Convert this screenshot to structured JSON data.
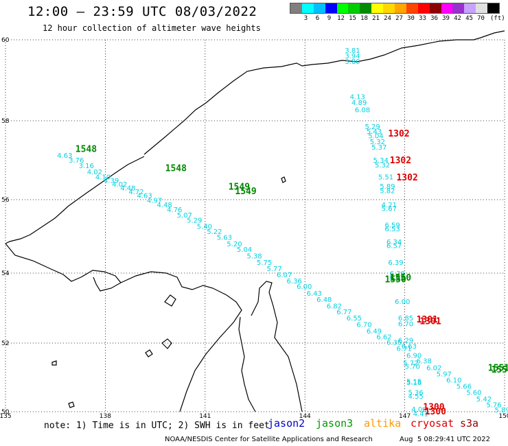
{
  "header": {
    "title": "12:00 – 23:59 UTC 08/03/2022",
    "subtitle": "12 hour collection of altimeter wave heights"
  },
  "colorbar": {
    "colors": [
      "#7f7f7f",
      "#00ffff",
      "#00bfff",
      "#0000ff",
      "#00ff00",
      "#00cd00",
      "#008b00",
      "#ffff00",
      "#ffd700",
      "#ffa500",
      "#ff4500",
      "#ff0000",
      "#8b0000",
      "#ff00ff",
      "#9932cc",
      "#c8a2ff",
      "#e0e0e0",
      "#000000"
    ],
    "labels": [
      "3",
      "6",
      "9",
      "12",
      "15",
      "18",
      "21",
      "24",
      "27",
      "30",
      "33",
      "36",
      "39",
      "42",
      "45",
      "70"
    ],
    "unit": "(ft)"
  },
  "axes": {
    "lon_ticks": [
      "135",
      "138",
      "141",
      "144",
      "147",
      "150"
    ],
    "lat_ticks": [
      "60",
      "58",
      "56",
      "54",
      "52",
      "50"
    ]
  },
  "footer": {
    "note": "note: 1) Time is in UTC; 2) SWH is in feet",
    "satellites": [
      {
        "name": "jason2",
        "color": "#0000cc"
      },
      {
        "name": "jason3",
        "color": "#009900"
      },
      {
        "name": "altika",
        "color": "#ff9900"
      },
      {
        "name": "cryosat",
        "color": "#dd0000"
      },
      {
        "name": "s3a",
        "color": "#990000"
      }
    ],
    "credit": "NOAA/NESDIS Center for Satellite Applications and Research",
    "generated": "Aug  5 08:29:41 UTC 2022"
  },
  "wave_heights": [
    {
      "lon": 145.2,
      "lat": 59.65,
      "value": "3.81"
    },
    {
      "lon": 145.2,
      "lat": 59.5,
      "value": "3.94"
    },
    {
      "lon": 145.2,
      "lat": 59.35,
      "value": "3.80"
    },
    {
      "lon": 145.35,
      "lat": 58.4,
      "value": "4.13"
    },
    {
      "lon": 145.4,
      "lat": 58.25,
      "value": "4.89"
    },
    {
      "lon": 145.5,
      "lat": 58.05,
      "value": "6.08"
    },
    {
      "lon": 145.8,
      "lat": 57.6,
      "value": "5.29"
    },
    {
      "lon": 145.85,
      "lat": 57.47,
      "value": "5.43"
    },
    {
      "lon": 145.9,
      "lat": 57.35,
      "value": "5.04"
    },
    {
      "lon": 145.95,
      "lat": 57.2,
      "value": "5.32"
    },
    {
      "lon": 146.0,
      "lat": 57.05,
      "value": "5.37"
    },
    {
      "lon": 146.05,
      "lat": 56.7,
      "value": "5.34"
    },
    {
      "lon": 146.1,
      "lat": 56.57,
      "value": "5.32"
    },
    {
      "lon": 146.2,
      "lat": 56.25,
      "value": "5.51"
    },
    {
      "lon": 146.25,
      "lat": 56.0,
      "value": "5.89"
    },
    {
      "lon": 146.25,
      "lat": 55.88,
      "value": "5.82"
    },
    {
      "lon": 146.3,
      "lat": 55.5,
      "value": "4.21"
    },
    {
      "lon": 146.3,
      "lat": 55.4,
      "value": "5.67"
    },
    {
      "lon": 146.4,
      "lat": 54.95,
      "value": "6.59"
    },
    {
      "lon": 146.4,
      "lat": 54.85,
      "value": "6.53"
    },
    {
      "lon": 146.45,
      "lat": 54.5,
      "value": "6.34"
    },
    {
      "lon": 146.45,
      "lat": 54.4,
      "value": "6.57"
    },
    {
      "lon": 146.5,
      "lat": 53.95,
      "value": "6.39"
    },
    {
      "lon": 146.55,
      "lat": 53.65,
      "value": "6.28"
    },
    {
      "lon": 146.55,
      "lat": 53.55,
      "value": "6.29"
    },
    {
      "lon": 146.7,
      "lat": 52.9,
      "value": "6.00"
    },
    {
      "lon": 146.8,
      "lat": 52.45,
      "value": "6.85"
    },
    {
      "lon": 146.8,
      "lat": 52.3,
      "value": "6.70"
    },
    {
      "lon": 146.8,
      "lat": 51.85,
      "value": "6.29"
    },
    {
      "lon": 146.9,
      "lat": 51.7,
      "value": "6.63"
    },
    {
      "lon": 146.95,
      "lat": 51.25,
      "value": "5.72"
    },
    {
      "lon": 147.0,
      "lat": 51.15,
      "value": "5.70"
    },
    {
      "lon": 147.05,
      "lat": 50.75,
      "value": "5.15"
    },
    {
      "lon": 147.05,
      "lat": 50.72,
      "value": "5.16"
    },
    {
      "lon": 147.1,
      "lat": 50.45,
      "value": "5.36"
    },
    {
      "lon": 147.1,
      "lat": 50.35,
      "value": "4.55"
    },
    {
      "lon": 147.2,
      "lat": 50.0,
      "value": "4.00"
    },
    {
      "lon": 147.25,
      "lat": 49.88,
      "value": "4.41"
    },
    {
      "lon": 136.55,
      "lat": 56.83,
      "value": "4.63"
    },
    {
      "lon": 136.9,
      "lat": 56.7,
      "value": "3.76"
    },
    {
      "lon": 137.2,
      "lat": 56.55,
      "value": "3.16"
    },
    {
      "lon": 137.45,
      "lat": 56.38,
      "value": "4.02"
    },
    {
      "lon": 137.7,
      "lat": 56.25,
      "value": "4.10"
    },
    {
      "lon": 137.95,
      "lat": 56.15,
      "value": "4.39"
    },
    {
      "lon": 138.2,
      "lat": 56.05,
      "value": "4.02"
    },
    {
      "lon": 138.45,
      "lat": 55.95,
      "value": "4.48"
    },
    {
      "lon": 138.7,
      "lat": 55.85,
      "value": "4.72"
    },
    {
      "lon": 138.95,
      "lat": 55.75,
      "value": "4.63"
    },
    {
      "lon": 139.25,
      "lat": 55.62,
      "value": "4.97"
    },
    {
      "lon": 139.55,
      "lat": 55.5,
      "value": "4.48"
    },
    {
      "lon": 139.85,
      "lat": 55.37,
      "value": "4.76"
    },
    {
      "lon": 140.15,
      "lat": 55.22,
      "value": "5.07"
    },
    {
      "lon": 140.45,
      "lat": 55.08,
      "value": "5.29"
    },
    {
      "lon": 140.75,
      "lat": 54.92,
      "value": "5.40"
    },
    {
      "lon": 141.05,
      "lat": 54.78,
      "value": "5.22"
    },
    {
      "lon": 141.35,
      "lat": 54.62,
      "value": "5.63"
    },
    {
      "lon": 141.65,
      "lat": 54.45,
      "value": "5.20"
    },
    {
      "lon": 141.95,
      "lat": 54.3,
      "value": "5.04"
    },
    {
      "lon": 142.25,
      "lat": 54.12,
      "value": "5.38"
    },
    {
      "lon": 142.55,
      "lat": 53.95,
      "value": "5.75"
    },
    {
      "lon": 142.85,
      "lat": 53.78,
      "value": "5.77"
    },
    {
      "lon": 143.15,
      "lat": 53.62,
      "value": "6.07"
    },
    {
      "lon": 143.45,
      "lat": 53.45,
      "value": "6.36"
    },
    {
      "lon": 143.75,
      "lat": 53.3,
      "value": "6.00"
    },
    {
      "lon": 144.05,
      "lat": 53.12,
      "value": "6.43"
    },
    {
      "lon": 144.35,
      "lat": 52.95,
      "value": "6.48"
    },
    {
      "lon": 144.65,
      "lat": 52.78,
      "value": "6.82"
    },
    {
      "lon": 144.95,
      "lat": 52.62,
      "value": "6.77"
    },
    {
      "lon": 145.25,
      "lat": 52.45,
      "value": "6.55"
    },
    {
      "lon": 145.55,
      "lat": 52.28,
      "value": "6.70"
    },
    {
      "lon": 145.85,
      "lat": 52.1,
      "value": "6.49"
    },
    {
      "lon": 146.15,
      "lat": 51.95,
      "value": "6.62"
    },
    {
      "lon": 146.45,
      "lat": 51.8,
      "value": "6.35"
    },
    {
      "lon": 146.75,
      "lat": 51.63,
      "value": "6.71"
    },
    {
      "lon": 147.05,
      "lat": 51.45,
      "value": "6.90"
    },
    {
      "lon": 147.35,
      "lat": 51.3,
      "value": "6.38"
    },
    {
      "lon": 147.65,
      "lat": 51.12,
      "value": "6.02"
    },
    {
      "lon": 147.95,
      "lat": 50.95,
      "value": "5.97"
    },
    {
      "lon": 148.25,
      "lat": 50.78,
      "value": "6.10"
    },
    {
      "lon": 148.55,
      "lat": 50.62,
      "value": "5.66"
    },
    {
      "lon": 148.85,
      "lat": 50.45,
      "value": "5.60"
    },
    {
      "lon": 149.15,
      "lat": 50.28,
      "value": "5.42"
    },
    {
      "lon": 149.45,
      "lat": 50.12,
      "value": "5.76"
    },
    {
      "lon": 149.7,
      "lat": 49.98,
      "value": "5.89"
    }
  ],
  "pass_times": [
    {
      "lon": 137.1,
      "lat": 56.98,
      "value": "1548",
      "color": "#008800"
    },
    {
      "lon": 139.8,
      "lat": 56.47,
      "value": "1548",
      "color": "#008800"
    },
    {
      "lon": 141.7,
      "lat": 55.97,
      "value": "1549",
      "color": "#008800"
    },
    {
      "lon": 141.9,
      "lat": 55.85,
      "value": "1549",
      "color": "#008800"
    },
    {
      "lon": 146.5,
      "lat": 57.4,
      "value": "1302",
      "color": "#dd0000"
    },
    {
      "lon": 146.55,
      "lat": 56.68,
      "value": "1302",
      "color": "#dd0000"
    },
    {
      "lon": 146.75,
      "lat": 56.22,
      "value": "1302",
      "color": "#dd0000"
    },
    {
      "lon": 146.4,
      "lat": 53.48,
      "value": "1550",
      "color": "#008800"
    },
    {
      "lon": 146.55,
      "lat": 53.52,
      "value": "1550",
      "color": "#008800"
    },
    {
      "lon": 147.35,
      "lat": 52.4,
      "value": "1301",
      "color": "#dd0000"
    },
    {
      "lon": 147.45,
      "lat": 52.35,
      "value": "1301",
      "color": "#dd0000"
    },
    {
      "lon": 149.5,
      "lat": 51.1,
      "value": "1551",
      "color": "#008800"
    },
    {
      "lon": 149.6,
      "lat": 51.05,
      "value": "1551",
      "color": "#008800"
    },
    {
      "lon": 147.55,
      "lat": 50.05,
      "value": "1300",
      "color": "#dd0000"
    },
    {
      "lon": 147.6,
      "lat": 49.93,
      "value": "1300",
      "color": "#dd0000"
    }
  ]
}
